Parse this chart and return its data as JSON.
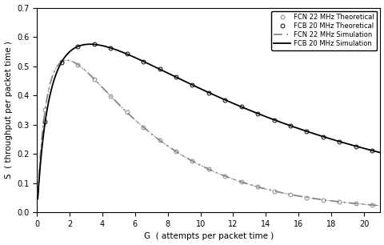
{
  "title": "",
  "xlabel": "G  ( attempts per packet time )",
  "ylabel": "S  ( throughput per packet time )",
  "xlim": [
    0,
    21
  ],
  "ylim": [
    0,
    0.7
  ],
  "xticks": [
    0,
    2,
    4,
    6,
    8,
    10,
    12,
    14,
    16,
    18,
    20
  ],
  "yticks": [
    0.0,
    0.1,
    0.2,
    0.3,
    0.4,
    0.5,
    0.6,
    0.7
  ],
  "legend_entries": [
    "FCN 22 MHz Theoretical",
    "FCB 20 MHz Theoretical",
    "FCN 22 MHz Simulation",
    "FCB 20 MHz Simulation"
  ],
  "legend_loc": "upper right",
  "gray_color": "#888888",
  "black_color": "#000000",
  "background_color": "#ffffff",
  "figsize": [
    4.81,
    3.06
  ],
  "dpi": 100,
  "fcb_a": 0.035,
  "fcb_peak": 0.575,
  "fcn_a": 0.09,
  "fcn_peak": 0.52
}
